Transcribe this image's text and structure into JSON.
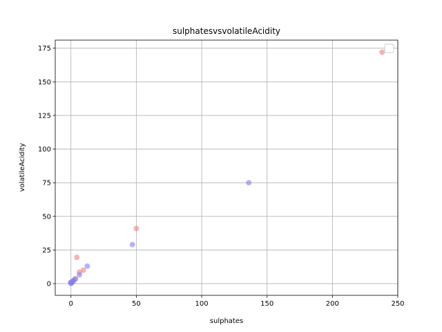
{
  "chart_data": {
    "type": "scatter",
    "title": "sulphatesvsvolatileAcidity",
    "xlabel": "sulphates",
    "ylabel": "volatileAcidity",
    "xlim": [
      -12,
      250
    ],
    "ylim": [
      -8.7,
      181
    ],
    "x_ticks": [
      0,
      50,
      100,
      150,
      200,
      250
    ],
    "y_ticks": [
      0,
      25,
      50,
      75,
      100,
      125,
      150,
      175
    ],
    "grid": true,
    "legend": "top-right",
    "series": [
      {
        "color": "#f08080",
        "points": [
          [
            238,
            172
          ],
          [
            50,
            41
          ],
          [
            4.5,
            19.5
          ],
          [
            9.5,
            10
          ],
          [
            6.5,
            8.5
          ],
          [
            3,
            3.5
          ],
          [
            1.5,
            2
          ],
          [
            0.8,
            1.2
          ],
          [
            0.3,
            0.6
          ]
        ]
      },
      {
        "color": "#8080f0",
        "points": [
          [
            136,
            75
          ],
          [
            47,
            29
          ],
          [
            12.5,
            13
          ],
          [
            6.5,
            6.5
          ],
          [
            3.5,
            3.5
          ],
          [
            2,
            2
          ],
          [
            1.2,
            1.5
          ],
          [
            0.5,
            0.5
          ],
          [
            0,
            0.3
          ],
          [
            -0.3,
            0.8
          ]
        ]
      }
    ]
  }
}
